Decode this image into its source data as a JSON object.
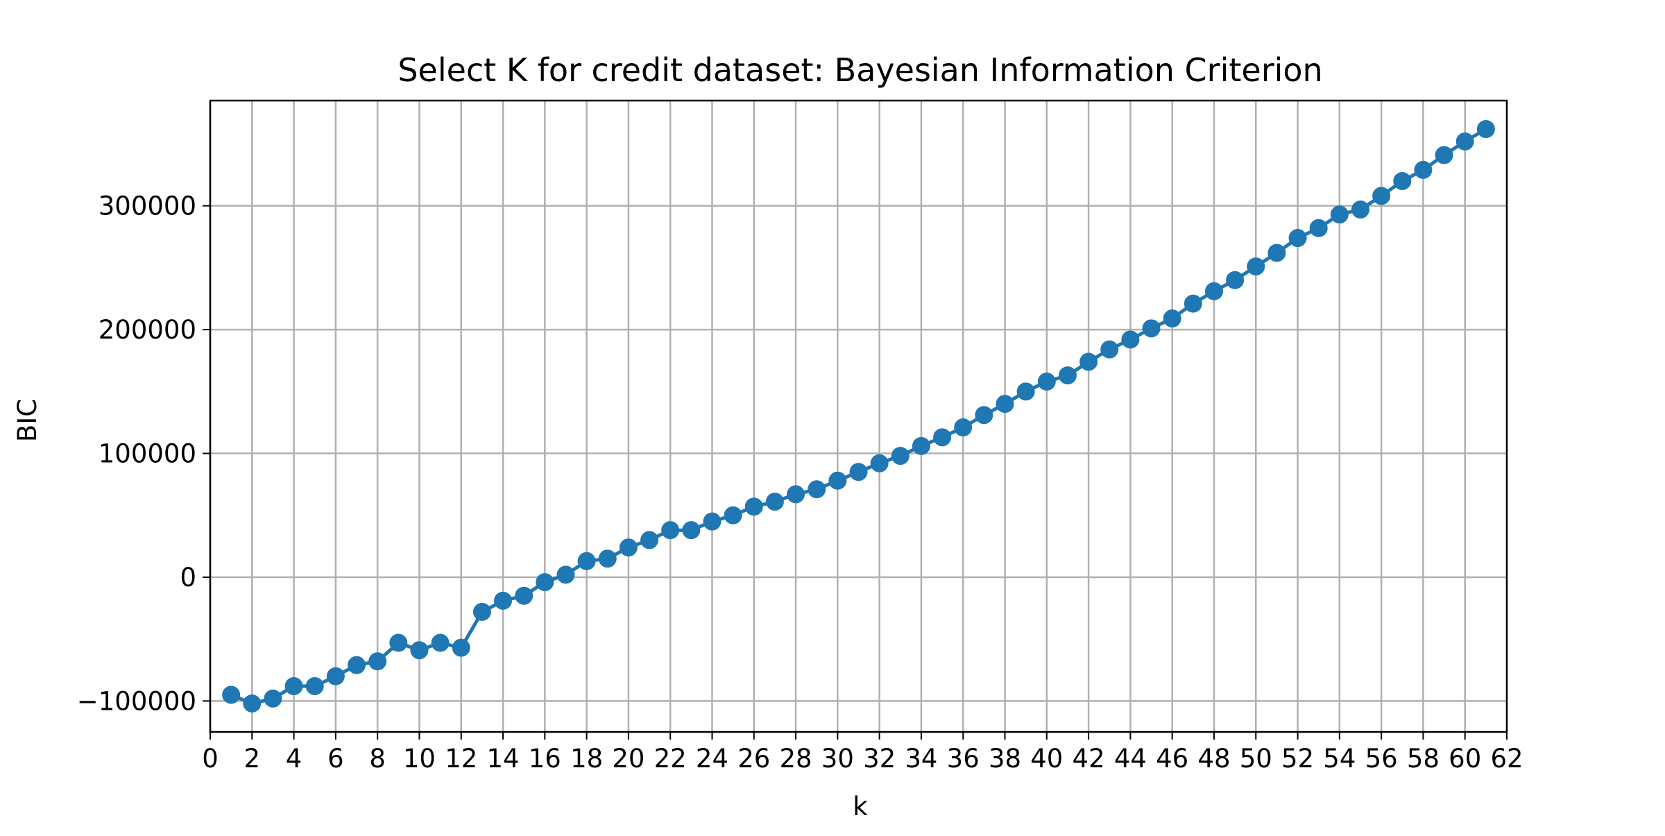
{
  "chart_data": {
    "type": "line",
    "title": "Select K for credit dataset:  Bayesian Information Criterion",
    "xlabel": "k",
    "ylabel": "BIC",
    "xlim": [
      0,
      62
    ],
    "ylim": [
      -125000,
      385000
    ],
    "xticks": [
      0,
      2,
      4,
      6,
      8,
      10,
      12,
      14,
      16,
      18,
      20,
      22,
      24,
      26,
      28,
      30,
      32,
      34,
      36,
      38,
      40,
      42,
      44,
      46,
      48,
      50,
      52,
      54,
      56,
      58,
      60,
      62
    ],
    "yticks": [
      -100000,
      0,
      100000,
      200000,
      300000
    ],
    "ytick_labels": [
      "−100000",
      "0",
      "100000",
      "200000",
      "300000"
    ],
    "grid": true,
    "legend": null,
    "series": [
      {
        "color": "#1f77b4",
        "marker": "circle",
        "x": [
          1,
          2,
          3,
          4,
          5,
          6,
          7,
          8,
          9,
          10,
          11,
          12,
          13,
          14,
          15,
          16,
          17,
          18,
          19,
          20,
          21,
          22,
          23,
          24,
          25,
          26,
          27,
          28,
          29,
          30,
          31,
          32,
          33,
          34,
          35,
          36,
          37,
          38,
          39,
          40,
          41,
          42,
          43,
          44,
          45,
          46,
          47,
          48,
          49,
          50,
          51,
          52,
          53,
          54,
          55,
          56,
          57,
          58,
          59,
          60,
          61
        ],
        "y": [
          -95000,
          -102000,
          -98000,
          -88000,
          -88000,
          -80000,
          -71000,
          -68000,
          -53000,
          -59000,
          -53000,
          -57000,
          -28000,
          -19000,
          -15000,
          -4000,
          2000,
          13000,
          15000,
          24000,
          30000,
          38000,
          38000,
          45000,
          50000,
          57000,
          61000,
          67000,
          71000,
          78000,
          85000,
          92000,
          98000,
          106000,
          113000,
          121000,
          131000,
          140000,
          150000,
          158000,
          163000,
          174000,
          184000,
          192000,
          201000,
          209000,
          221000,
          231000,
          240000,
          251000,
          262000,
          274000,
          282000,
          293000,
          297000,
          308000,
          320000,
          329000,
          341000,
          352000,
          362000
        ]
      }
    ]
  }
}
